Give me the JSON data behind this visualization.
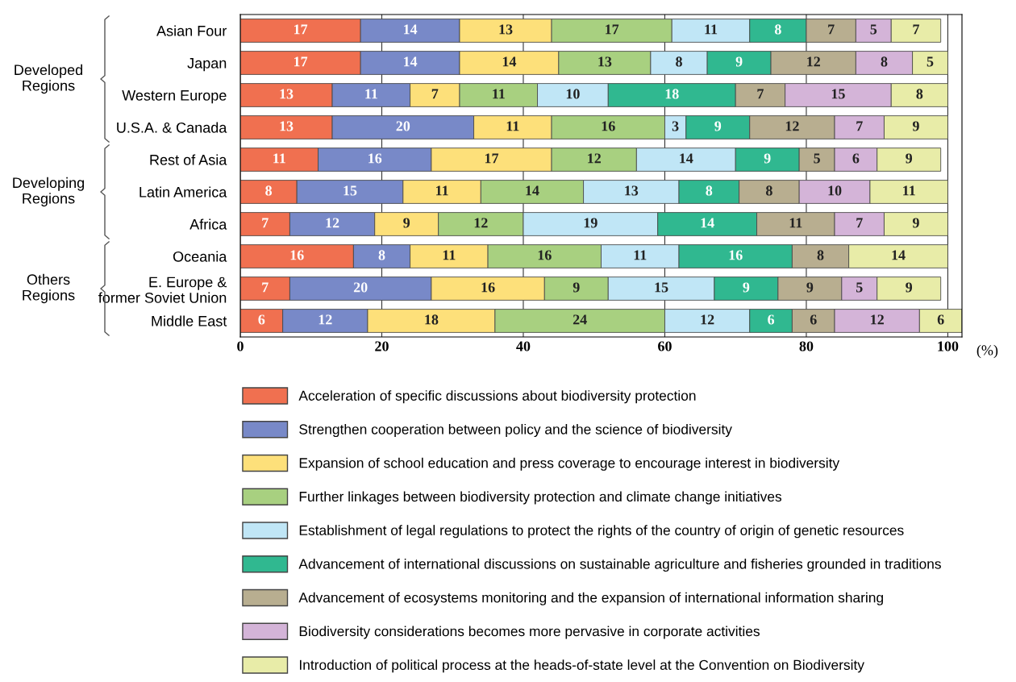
{
  "chart_data": {
    "type": "bar",
    "orientation": "horizontal",
    "stacked": true,
    "categories": [
      "Asian Four",
      "Japan",
      "Western Europe",
      "U.S.A. & Canada",
      "Rest of Asia",
      "Latin America",
      "Africa",
      "Oceania",
      "E. Europe &\nformer Soviet Union",
      "Middle East"
    ],
    "series": [
      {
        "name": "Acceleration of specific discussions about biodiversity protection",
        "color": "#f07050",
        "values": [
          17,
          17,
          13,
          13,
          11,
          8,
          7,
          16,
          7,
          6
        ],
        "value_labels": [
          "17",
          "17",
          "13",
          "13",
          "11",
          "8",
          "7",
          "16",
          "7",
          "6"
        ]
      },
      {
        "name": "Strengthen cooperation between policy and the science of biodiversity",
        "color": "#7889c8",
        "values": [
          14,
          14,
          11,
          20,
          16,
          15,
          12,
          8,
          20,
          12
        ],
        "value_labels": [
          "14",
          "14",
          "11",
          "20",
          "16",
          "15",
          "12",
          "8",
          "20",
          "12"
        ]
      },
      {
        "name": "Expansion of school education and press coverage to encourage interest in biodiversity",
        "color": "#fde07a",
        "values": [
          13,
          14,
          7,
          11,
          17,
          11,
          9,
          11,
          16,
          18
        ],
        "value_labels": [
          "13",
          "14",
          "7",
          "11",
          "17",
          "11",
          "9",
          "11",
          "16",
          "18"
        ]
      },
      {
        "name": "Further linkages between biodiversity protection and climate change initiatives",
        "color": "#a8d080",
        "values": [
          17,
          13,
          11,
          16,
          12,
          14.5,
          12,
          16,
          9,
          24
        ],
        "value_labels": [
          "17",
          "13",
          "11",
          "16",
          "12",
          "14",
          "12",
          "16",
          "9",
          "24"
        ]
      },
      {
        "name": "Establishment of legal regulations to protect the rights of the country of origin of genetic resources",
        "color": "#c0e6f6",
        "values": [
          11,
          8,
          10,
          3,
          14,
          13.5,
          19,
          11,
          15,
          12
        ],
        "value_labels": [
          "11",
          "8",
          "10",
          "3",
          "14",
          "13",
          "19",
          "11",
          "15",
          "12"
        ]
      },
      {
        "name": "Advancement of international discussions on sustainable agriculture and fisheries grounded in traditions",
        "color": "#30b890",
        "values": [
          8,
          9,
          18,
          9,
          9,
          8.5,
          14,
          16,
          9,
          6
        ],
        "value_labels": [
          "8",
          "9",
          "18",
          "9",
          "9",
          "8",
          "14",
          "16",
          "9",
          "6"
        ]
      },
      {
        "name": "Advancement of ecosystems monitoring and the expansion of international information sharing",
        "color": "#b8ae90",
        "values": [
          7,
          12,
          7,
          12,
          5,
          8.5,
          11,
          8,
          9,
          6
        ],
        "value_labels": [
          "7",
          "12",
          "7",
          "12",
          "5",
          "8",
          "11",
          "8",
          "9",
          "6"
        ]
      },
      {
        "name": "Biodiversity considerations becomes more pervasive in corporate activities",
        "color": "#d4b4d8",
        "values": [
          5,
          8,
          15,
          7,
          6,
          10,
          7,
          null,
          5,
          12
        ],
        "value_labels": [
          "5",
          "8",
          "15",
          "7",
          "6",
          "10",
          "7",
          null,
          "5",
          "12"
        ]
      },
      {
        "name": "Introduction of political process at the heads-of-state level at the Convention on Biodiversity",
        "color": "#e8eca8",
        "values": [
          7,
          5,
          8,
          9,
          9,
          11,
          9,
          14,
          9,
          6
        ],
        "value_labels": [
          "7",
          "5",
          "8",
          "9",
          "9",
          "11",
          "9",
          "14",
          "9",
          "6"
        ]
      }
    ],
    "xlim": [
      0,
      102
    ],
    "xticks": [
      0,
      20,
      40,
      60,
      80,
      100
    ],
    "xlabel": "(%)",
    "grid": "x",
    "legend": "bottom",
    "annotations": [
      "Developed\nRegions",
      "Developing\nRegions",
      "Others\nRegions"
    ]
  }
}
